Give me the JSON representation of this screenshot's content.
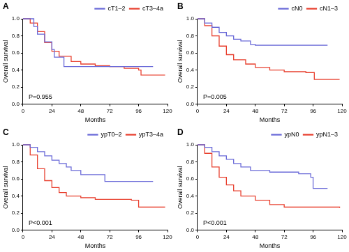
{
  "chart_data": [
    {
      "type": "line",
      "panel": "A",
      "annotation": "P=0.955",
      "x_label": "Months",
      "y_label": "Overall survival",
      "xlim": [
        0,
        120
      ],
      "xticks": [
        0,
        24,
        48,
        72,
        96,
        120
      ],
      "ylim": [
        0,
        1
      ],
      "yticks": [
        {
          "value": 0,
          "label": "0.0"
        },
        0.2,
        0.4,
        0.6,
        0.8,
        {
          "value": 1,
          "label": "1.0"
        }
      ],
      "grid": false,
      "legend": "upper right",
      "line_style": "steps",
      "series": [
        {
          "name": "cT1–2",
          "color": "#6a6ad8",
          "x": [
            0,
            9,
            12,
            18,
            24,
            26,
            34,
            108
          ],
          "values": [
            1.0,
            0.91,
            0.82,
            0.73,
            0.64,
            0.55,
            0.44,
            0.44
          ]
        },
        {
          "name": "cT3–4a",
          "color": "#e8402f",
          "x": [
            0,
            6,
            12,
            18,
            24,
            30,
            40,
            48,
            60,
            72,
            84,
            96,
            98,
            118
          ],
          "values": [
            1.0,
            0.95,
            0.85,
            0.72,
            0.62,
            0.56,
            0.5,
            0.47,
            0.45,
            0.44,
            0.42,
            0.4,
            0.34,
            0.34
          ]
        }
      ]
    },
    {
      "type": "line",
      "panel": "B",
      "annotation": "P=0.005",
      "x_label": "Months",
      "y_label": "Overall survival",
      "xlim": [
        0,
        120
      ],
      "xticks": [
        0,
        24,
        48,
        72,
        96,
        120
      ],
      "ylim": [
        0,
        1
      ],
      "yticks": [
        {
          "value": 0,
          "label": "0.0"
        },
        0.2,
        0.4,
        0.6,
        0.8,
        {
          "value": 1,
          "label": "1.0"
        }
      ],
      "grid": false,
      "legend": "upper right",
      "line_style": "steps",
      "series": [
        {
          "name": "cN0",
          "color": "#6a6ad8",
          "x": [
            0,
            6,
            12,
            18,
            24,
            30,
            36,
            44,
            48,
            108
          ],
          "values": [
            1.0,
            0.95,
            0.9,
            0.84,
            0.8,
            0.76,
            0.74,
            0.7,
            0.69,
            0.69
          ]
        },
        {
          "name": "cN1–3",
          "color": "#e8402f",
          "x": [
            0,
            6,
            12,
            18,
            24,
            30,
            40,
            48,
            60,
            72,
            90,
            97,
            118
          ],
          "values": [
            1.0,
            0.92,
            0.8,
            0.68,
            0.58,
            0.52,
            0.47,
            0.43,
            0.4,
            0.38,
            0.37,
            0.29,
            0.29
          ]
        }
      ]
    },
    {
      "type": "line",
      "panel": "C",
      "annotation": "P<0.001",
      "x_label": "Months",
      "y_label": "Overall survival",
      "xlim": [
        0,
        120
      ],
      "xticks": [
        0,
        24,
        48,
        72,
        96,
        120
      ],
      "ylim": [
        0,
        1
      ],
      "yticks": [
        {
          "value": 0,
          "label": "0.0"
        },
        0.2,
        0.4,
        0.6,
        0.8,
        {
          "value": 1,
          "label": "1.0"
        }
      ],
      "grid": false,
      "legend": "upper right",
      "line_style": "steps",
      "series": [
        {
          "name": "ypT0–2",
          "color": "#6a6ad8",
          "x": [
            0,
            6,
            12,
            18,
            24,
            30,
            36,
            40,
            48,
            66,
            68,
            108
          ],
          "values": [
            1.0,
            0.97,
            0.92,
            0.87,
            0.82,
            0.78,
            0.74,
            0.7,
            0.65,
            0.65,
            0.57,
            0.57
          ]
        },
        {
          "name": "ypT3–4a",
          "color": "#e8402f",
          "x": [
            0,
            6,
            12,
            18,
            24,
            30,
            36,
            48,
            60,
            90,
            96,
            118
          ],
          "values": [
            1.0,
            0.88,
            0.72,
            0.58,
            0.5,
            0.44,
            0.4,
            0.38,
            0.36,
            0.35,
            0.27,
            0.27
          ]
        }
      ]
    },
    {
      "type": "line",
      "panel": "D",
      "annotation": "P<0.001",
      "x_label": "Months",
      "y_label": "Overall survival",
      "xlim": [
        0,
        120
      ],
      "xticks": [
        0,
        24,
        48,
        72,
        96,
        120
      ],
      "ylim": [
        0,
        1
      ],
      "yticks": [
        {
          "value": 0,
          "label": "0.0"
        },
        0.2,
        0.4,
        0.6,
        0.8,
        {
          "value": 1,
          "label": "1.0"
        }
      ],
      "grid": false,
      "legend": "upper right",
      "line_style": "steps",
      "series": [
        {
          "name": "ypN0",
          "color": "#6a6ad8",
          "x": [
            0,
            6,
            12,
            18,
            24,
            30,
            36,
            44,
            60,
            84,
            94,
            96,
            108
          ],
          "values": [
            1.0,
            0.97,
            0.92,
            0.87,
            0.83,
            0.78,
            0.74,
            0.7,
            0.68,
            0.66,
            0.62,
            0.49,
            0.49
          ]
        },
        {
          "name": "ypN1–3",
          "color": "#e8402f",
          "x": [
            0,
            6,
            12,
            18,
            24,
            30,
            36,
            48,
            60,
            72,
            118
          ],
          "values": [
            1.0,
            0.9,
            0.74,
            0.62,
            0.53,
            0.46,
            0.4,
            0.35,
            0.3,
            0.27,
            0.26
          ]
        }
      ]
    }
  ]
}
